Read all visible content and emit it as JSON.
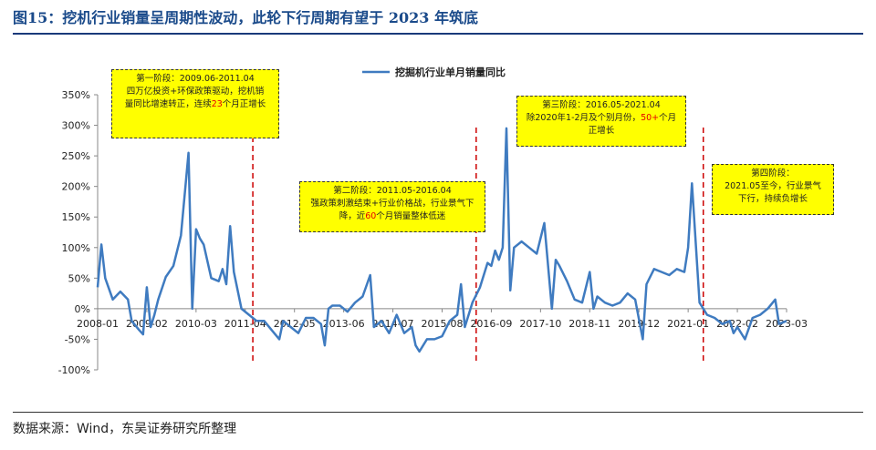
{
  "figure": {
    "title": "图15：挖机行业销量呈周期性波动，此轮下行周期有望于 2023 年筑底",
    "source": "数据来源：Wind，东吴证券研究所整理"
  },
  "chart_data": {
    "type": "line",
    "title": "",
    "xlabel": "",
    "ylabel": "",
    "ylim": [
      -100,
      350
    ],
    "y_ticks": [
      "350%",
      "300%",
      "250%",
      "200%",
      "150%",
      "100%",
      "50%",
      "0%",
      "-50%",
      "-100%"
    ],
    "x_tick_labels": [
      "2008-01",
      "2009-02",
      "2010-03",
      "2011-04",
      "2012-05",
      "2013-06",
      "2014-07",
      "2015-08",
      "2016-09",
      "2017-10",
      "2018-11",
      "2019-12",
      "2021-01",
      "2022-02",
      "2023-03"
    ],
    "x_range": [
      "2008-01",
      "2023-03"
    ],
    "grid": false,
    "legend": "top-center",
    "series": [
      {
        "name": "挖掘机行业单月销量同比",
        "color": "#3f7bc0",
        "points": [
          [
            "2008-01",
            35
          ],
          [
            "2008-02",
            105
          ],
          [
            "2008-03",
            50
          ],
          [
            "2008-05",
            15
          ],
          [
            "2008-07",
            28
          ],
          [
            "2008-09",
            15
          ],
          [
            "2008-10",
            -20
          ],
          [
            "2008-12",
            -35
          ],
          [
            "2009-01",
            -42
          ],
          [
            "2009-02",
            35
          ],
          [
            "2009-03",
            -30
          ],
          [
            "2009-04",
            -10
          ],
          [
            "2009-05",
            15
          ],
          [
            "2009-07",
            52
          ],
          [
            "2009-09",
            70
          ],
          [
            "2009-11",
            120
          ],
          [
            "2010-01",
            255
          ],
          [
            "2010-02",
            0
          ],
          [
            "2010-03",
            130
          ],
          [
            "2010-04",
            115
          ],
          [
            "2010-05",
            105
          ],
          [
            "2010-07",
            50
          ],
          [
            "2010-09",
            45
          ],
          [
            "2010-10",
            65
          ],
          [
            "2010-11",
            40
          ],
          [
            "2010-12",
            135
          ],
          [
            "2011-01",
            60
          ],
          [
            "2011-03",
            0
          ],
          [
            "2011-05",
            -10
          ],
          [
            "2011-07",
            -20
          ],
          [
            "2011-09",
            -20
          ],
          [
            "2011-11",
            -35
          ],
          [
            "2012-01",
            -50
          ],
          [
            "2012-02",
            -20
          ],
          [
            "2012-04",
            -30
          ],
          [
            "2012-06",
            -40
          ],
          [
            "2012-08",
            -15
          ],
          [
            "2012-10",
            -15
          ],
          [
            "2012-12",
            -25
          ],
          [
            "2013-01",
            -60
          ],
          [
            "2013-02",
            0
          ],
          [
            "2013-03",
            5
          ],
          [
            "2013-05",
            5
          ],
          [
            "2013-07",
            -5
          ],
          [
            "2013-09",
            10
          ],
          [
            "2013-11",
            20
          ],
          [
            "2014-01",
            55
          ],
          [
            "2014-02",
            -30
          ],
          [
            "2014-04",
            -20
          ],
          [
            "2014-06",
            -40
          ],
          [
            "2014-08",
            -10
          ],
          [
            "2014-10",
            -40
          ],
          [
            "2014-12",
            -30
          ],
          [
            "2015-01",
            -60
          ],
          [
            "2015-02",
            -70
          ],
          [
            "2015-04",
            -50
          ],
          [
            "2015-06",
            -50
          ],
          [
            "2015-08",
            -45
          ],
          [
            "2015-10",
            -20
          ],
          [
            "2015-12",
            -10
          ],
          [
            "2016-01",
            40
          ],
          [
            "2016-02",
            -30
          ],
          [
            "2016-04",
            10
          ],
          [
            "2016-06",
            35
          ],
          [
            "2016-08",
            75
          ],
          [
            "2016-09",
            70
          ],
          [
            "2016-10",
            95
          ],
          [
            "2016-11",
            80
          ],
          [
            "2016-12",
            100
          ],
          [
            "2017-01",
            295
          ],
          [
            "2017-02",
            30
          ],
          [
            "2017-03",
            100
          ],
          [
            "2017-05",
            110
          ],
          [
            "2017-07",
            100
          ],
          [
            "2017-09",
            90
          ],
          [
            "2017-11",
            140
          ],
          [
            "2018-01",
            0
          ],
          [
            "2018-02",
            80
          ],
          [
            "2018-03",
            70
          ],
          [
            "2018-05",
            45
          ],
          [
            "2018-07",
            15
          ],
          [
            "2018-09",
            10
          ],
          [
            "2018-11",
            60
          ],
          [
            "2018-12",
            0
          ],
          [
            "2019-01",
            20
          ],
          [
            "2019-03",
            10
          ],
          [
            "2019-05",
            5
          ],
          [
            "2019-07",
            10
          ],
          [
            "2019-09",
            25
          ],
          [
            "2019-11",
            15
          ],
          [
            "2020-01",
            -50
          ],
          [
            "2020-02",
            40
          ],
          [
            "2020-04",
            65
          ],
          [
            "2020-06",
            60
          ],
          [
            "2020-08",
            55
          ],
          [
            "2020-10",
            65
          ],
          [
            "2020-12",
            60
          ],
          [
            "2021-01",
            100
          ],
          [
            "2021-02",
            205
          ],
          [
            "2021-04",
            10
          ],
          [
            "2021-06",
            -10
          ],
          [
            "2021-08",
            -15
          ],
          [
            "2021-10",
            -25
          ],
          [
            "2021-12",
            -20
          ],
          [
            "2022-01",
            -40
          ],
          [
            "2022-02",
            -30
          ],
          [
            "2022-04",
            -50
          ],
          [
            "2022-06",
            -15
          ],
          [
            "2022-08",
            -10
          ],
          [
            "2022-10",
            0
          ],
          [
            "2022-12",
            15
          ],
          [
            "2023-01",
            -25
          ],
          [
            "2023-03",
            -20
          ]
        ]
      }
    ],
    "dividers": [
      "2011-06",
      "2016-05",
      "2021-05"
    ],
    "divider_color": "#cc0000",
    "annotations": [
      {
        "id": "stage1",
        "line1": "第一阶段：2009.06-2011.04",
        "line2": "四万亿投资+环保政策驱动，挖机销",
        "line3_pre": "量同比增速转正，连续",
        "line3_hl": "23",
        "line3_post": "个月正增长"
      },
      {
        "id": "stage2",
        "line1": "第二阶段：2011.05-2016.04",
        "line2": "强政策刺激结束+行业价格战，行业景气下",
        "line3_pre": "降，近",
        "line3_hl": "60",
        "line3_post": "个月销量整体低迷"
      },
      {
        "id": "stage3",
        "line1": "第三阶段：2016.05-2021.04",
        "line2_pre": "除2020年1-2月及个别月份，",
        "line2_hl": "50+",
        "line2_post": "个月",
        "line3": "正增长"
      },
      {
        "id": "stage4",
        "line1": "第四阶段：",
        "line2": "2021.05至今，行业景气",
        "line3": "下行，持续负增长"
      }
    ]
  }
}
